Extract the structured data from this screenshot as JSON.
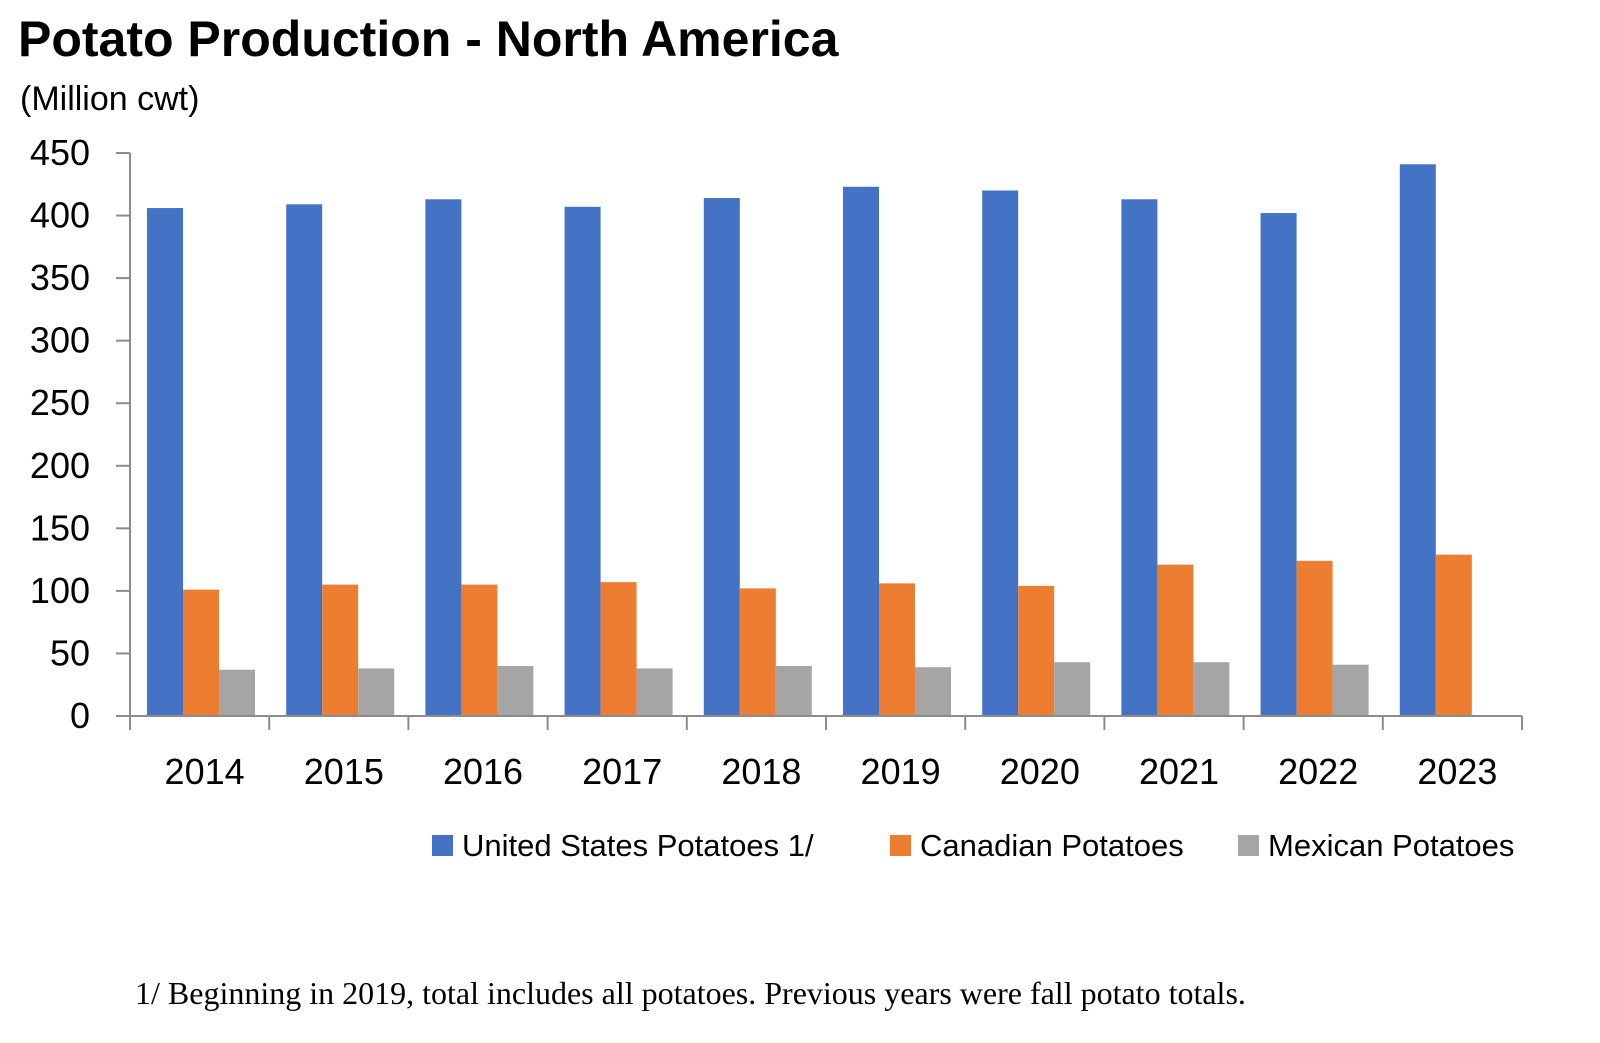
{
  "title": "Potato Production - North America",
  "subtitle": "(Million cwt)",
  "footnote": "1/ Beginning in 2019, total includes all potatoes. Previous years were fall potato totals.",
  "chart_data": {
    "type": "bar",
    "categories": [
      "2014",
      "2015",
      "2016",
      "2017",
      "2018",
      "2019",
      "2020",
      "2021",
      "2022",
      "2023"
    ],
    "series": [
      {
        "name": "United States Potatoes 1/",
        "color": "#4472C4",
        "values": [
          406,
          409,
          413,
          407,
          414,
          423,
          420,
          413,
          402,
          441
        ]
      },
      {
        "name": "Canadian Potatoes",
        "color": "#ED7D31",
        "values": [
          101,
          105,
          105,
          107,
          102,
          106,
          104,
          121,
          124,
          129
        ]
      },
      {
        "name": "Mexican Potatoes",
        "color": "#A5A5A5",
        "values": [
          37,
          38,
          40,
          38,
          40,
          39,
          43,
          43,
          41,
          null
        ]
      }
    ],
    "ylim": [
      0,
      450
    ],
    "yticks": [
      "0",
      "50",
      "100",
      "150",
      "200",
      "250",
      "300",
      "350",
      "400",
      "450"
    ],
    "grid": false,
    "legend_position": "bottom"
  }
}
